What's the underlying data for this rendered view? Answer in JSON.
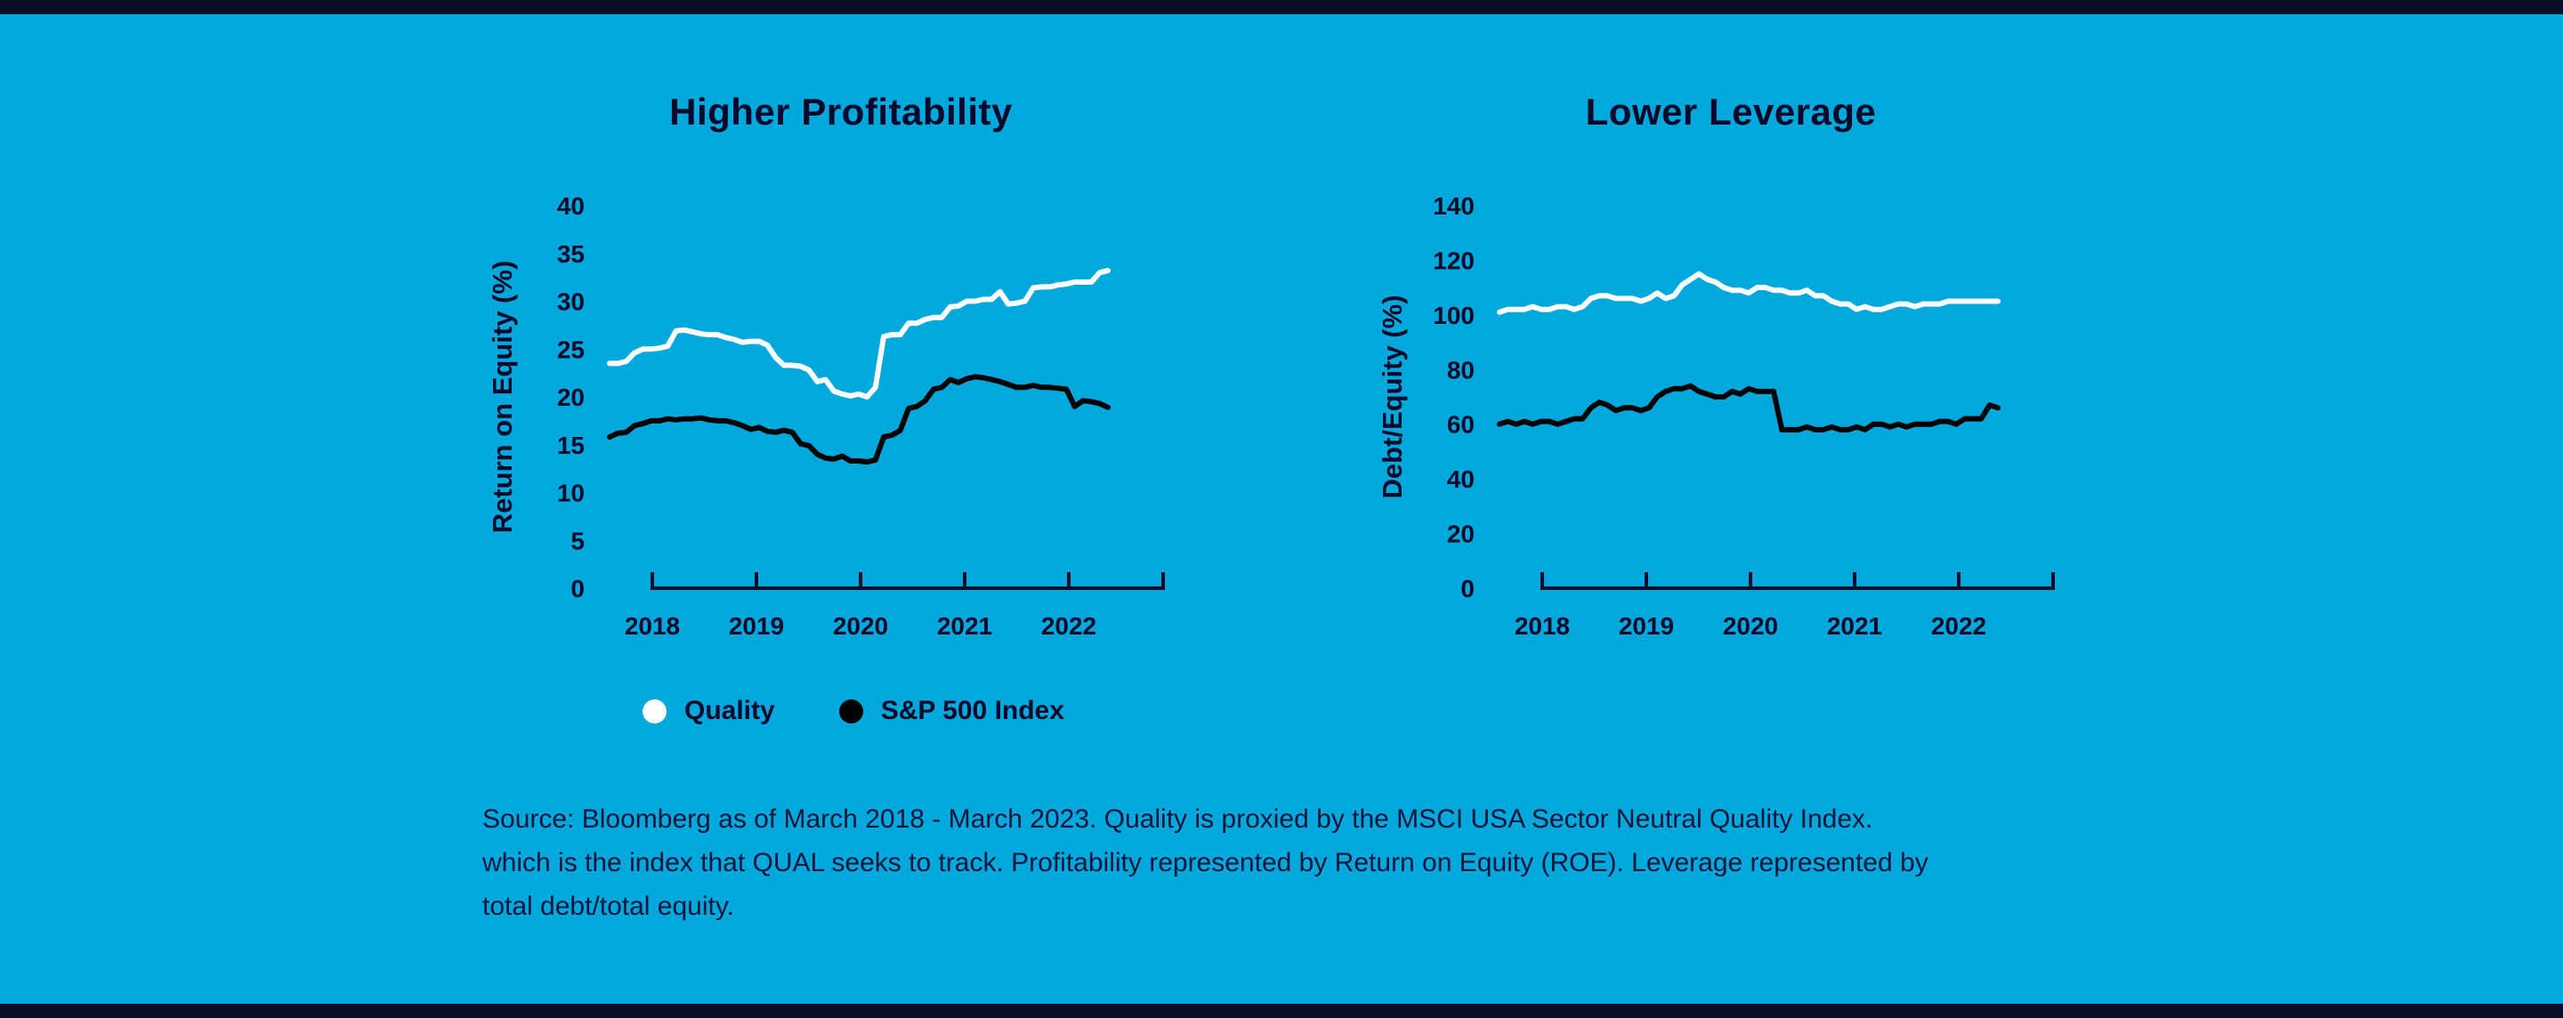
{
  "page": {
    "background_color": "#00a8dc",
    "band_color": "#0c0e2a"
  },
  "chart_data": [
    {
      "type": "line",
      "title": "Higher Profitability",
      "ylabel": "Return on Equity (%)",
      "y_max": 40,
      "y_ticks": [
        0,
        5,
        10,
        15,
        20,
        25,
        30,
        35,
        40
      ],
      "x_labels": [
        "2018",
        "2019",
        "2020",
        "2021",
        "2022"
      ],
      "x_range": "March 2018 - March 2023 (monthly)",
      "grid": false,
      "series": [
        {
          "name": "Quality",
          "color": "#ffffff",
          "values": [
            23.5,
            23.5,
            23.7,
            24.6,
            25,
            25,
            25.1,
            25.3,
            26.9,
            27,
            26.8,
            26.6,
            26.5,
            26.5,
            26.2,
            26,
            25.7,
            25.8,
            25.8,
            25.4,
            24.1,
            23.3,
            23.3,
            23.2,
            22.8,
            21.6,
            21.8,
            20.6,
            20.3,
            20.1,
            20.3,
            20,
            21,
            26.3,
            26.5,
            26.5,
            27.7,
            27.7,
            28.1,
            28.3,
            28.3,
            29.4,
            29.5,
            30,
            30,
            30.2,
            30.2,
            31,
            29.7,
            29.8,
            30,
            31.4,
            31.5,
            31.5,
            31.7,
            31.8,
            32,
            32,
            32,
            33,
            33.2
          ]
        },
        {
          "name": "S&P 500 Index",
          "color": "#000000",
          "values": [
            15.8,
            16.2,
            16.3,
            17,
            17.2,
            17.5,
            17.5,
            17.7,
            17.6,
            17.7,
            17.7,
            17.8,
            17.6,
            17.5,
            17.5,
            17.3,
            17,
            16.6,
            16.8,
            16.4,
            16.3,
            16.5,
            16.3,
            15.1,
            14.9,
            14,
            13.6,
            13.5,
            13.8,
            13.3,
            13.3,
            13.2,
            13.4,
            15.8,
            16,
            16.5,
            18.8,
            19,
            19.6,
            20.8,
            21,
            21.8,
            21.5,
            21.9,
            22.1,
            22,
            21.8,
            21.6,
            21.3,
            21,
            21,
            21.2,
            21,
            21,
            20.9,
            20.8,
            19,
            19.6,
            19.5,
            19.3,
            18.9
          ]
        }
      ]
    },
    {
      "type": "line",
      "title": "Lower Leverage",
      "ylabel": "Debt/Equity (%)",
      "y_max": 140,
      "y_ticks": [
        0,
        20,
        40,
        60,
        80,
        100,
        120,
        140
      ],
      "x_labels": [
        "2018",
        "2019",
        "2020",
        "2021",
        "2022"
      ],
      "x_range": "March 2018 - March 2023 (monthly)",
      "grid": false,
      "series": [
        {
          "name": "Quality",
          "color": "#ffffff",
          "values": [
            101,
            102,
            102,
            102,
            103,
            102,
            102,
            103,
            103,
            102,
            103,
            106,
            107,
            107,
            106,
            106,
            106,
            105,
            106,
            108,
            106,
            107,
            111,
            113,
            115,
            113,
            112,
            110,
            109,
            109,
            108,
            110,
            110,
            109,
            109,
            108,
            108,
            109,
            107,
            107,
            105,
            104,
            104,
            102,
            103,
            102,
            102,
            103,
            104,
            104,
            103,
            104,
            104,
            104,
            105,
            105,
            105,
            105,
            105,
            105,
            105
          ]
        },
        {
          "name": "S&P 500 Index",
          "color": "#000000",
          "values": [
            60,
            61,
            60,
            61,
            60,
            61,
            61,
            60,
            61,
            62,
            62,
            66,
            68,
            67,
            65,
            66,
            66,
            65,
            66,
            70,
            72,
            73,
            73,
            74,
            72,
            71,
            70,
            70,
            72,
            71,
            73,
            72,
            72,
            72,
            58,
            58,
            58,
            59,
            58,
            58,
            59,
            58,
            58,
            59,
            58,
            60,
            60,
            59,
            60,
            59,
            60,
            60,
            60,
            61,
            61,
            60,
            62,
            62,
            62,
            67,
            66
          ]
        }
      ]
    }
  ],
  "legend": [
    {
      "label": "Quality",
      "color": "#ffffff"
    },
    {
      "label": "S&P 500 Index",
      "color": "#000000"
    }
  ],
  "source_lines": [
    "Source: Bloomberg as of March 2018 - March 2023. Quality is proxied by the MSCI USA Sector Neutral Quality Index.",
    "which is the index that QUAL seeks to track. Profitability represented by Return on Equity (ROE). Leverage represented by",
    "total debt/total equity."
  ]
}
